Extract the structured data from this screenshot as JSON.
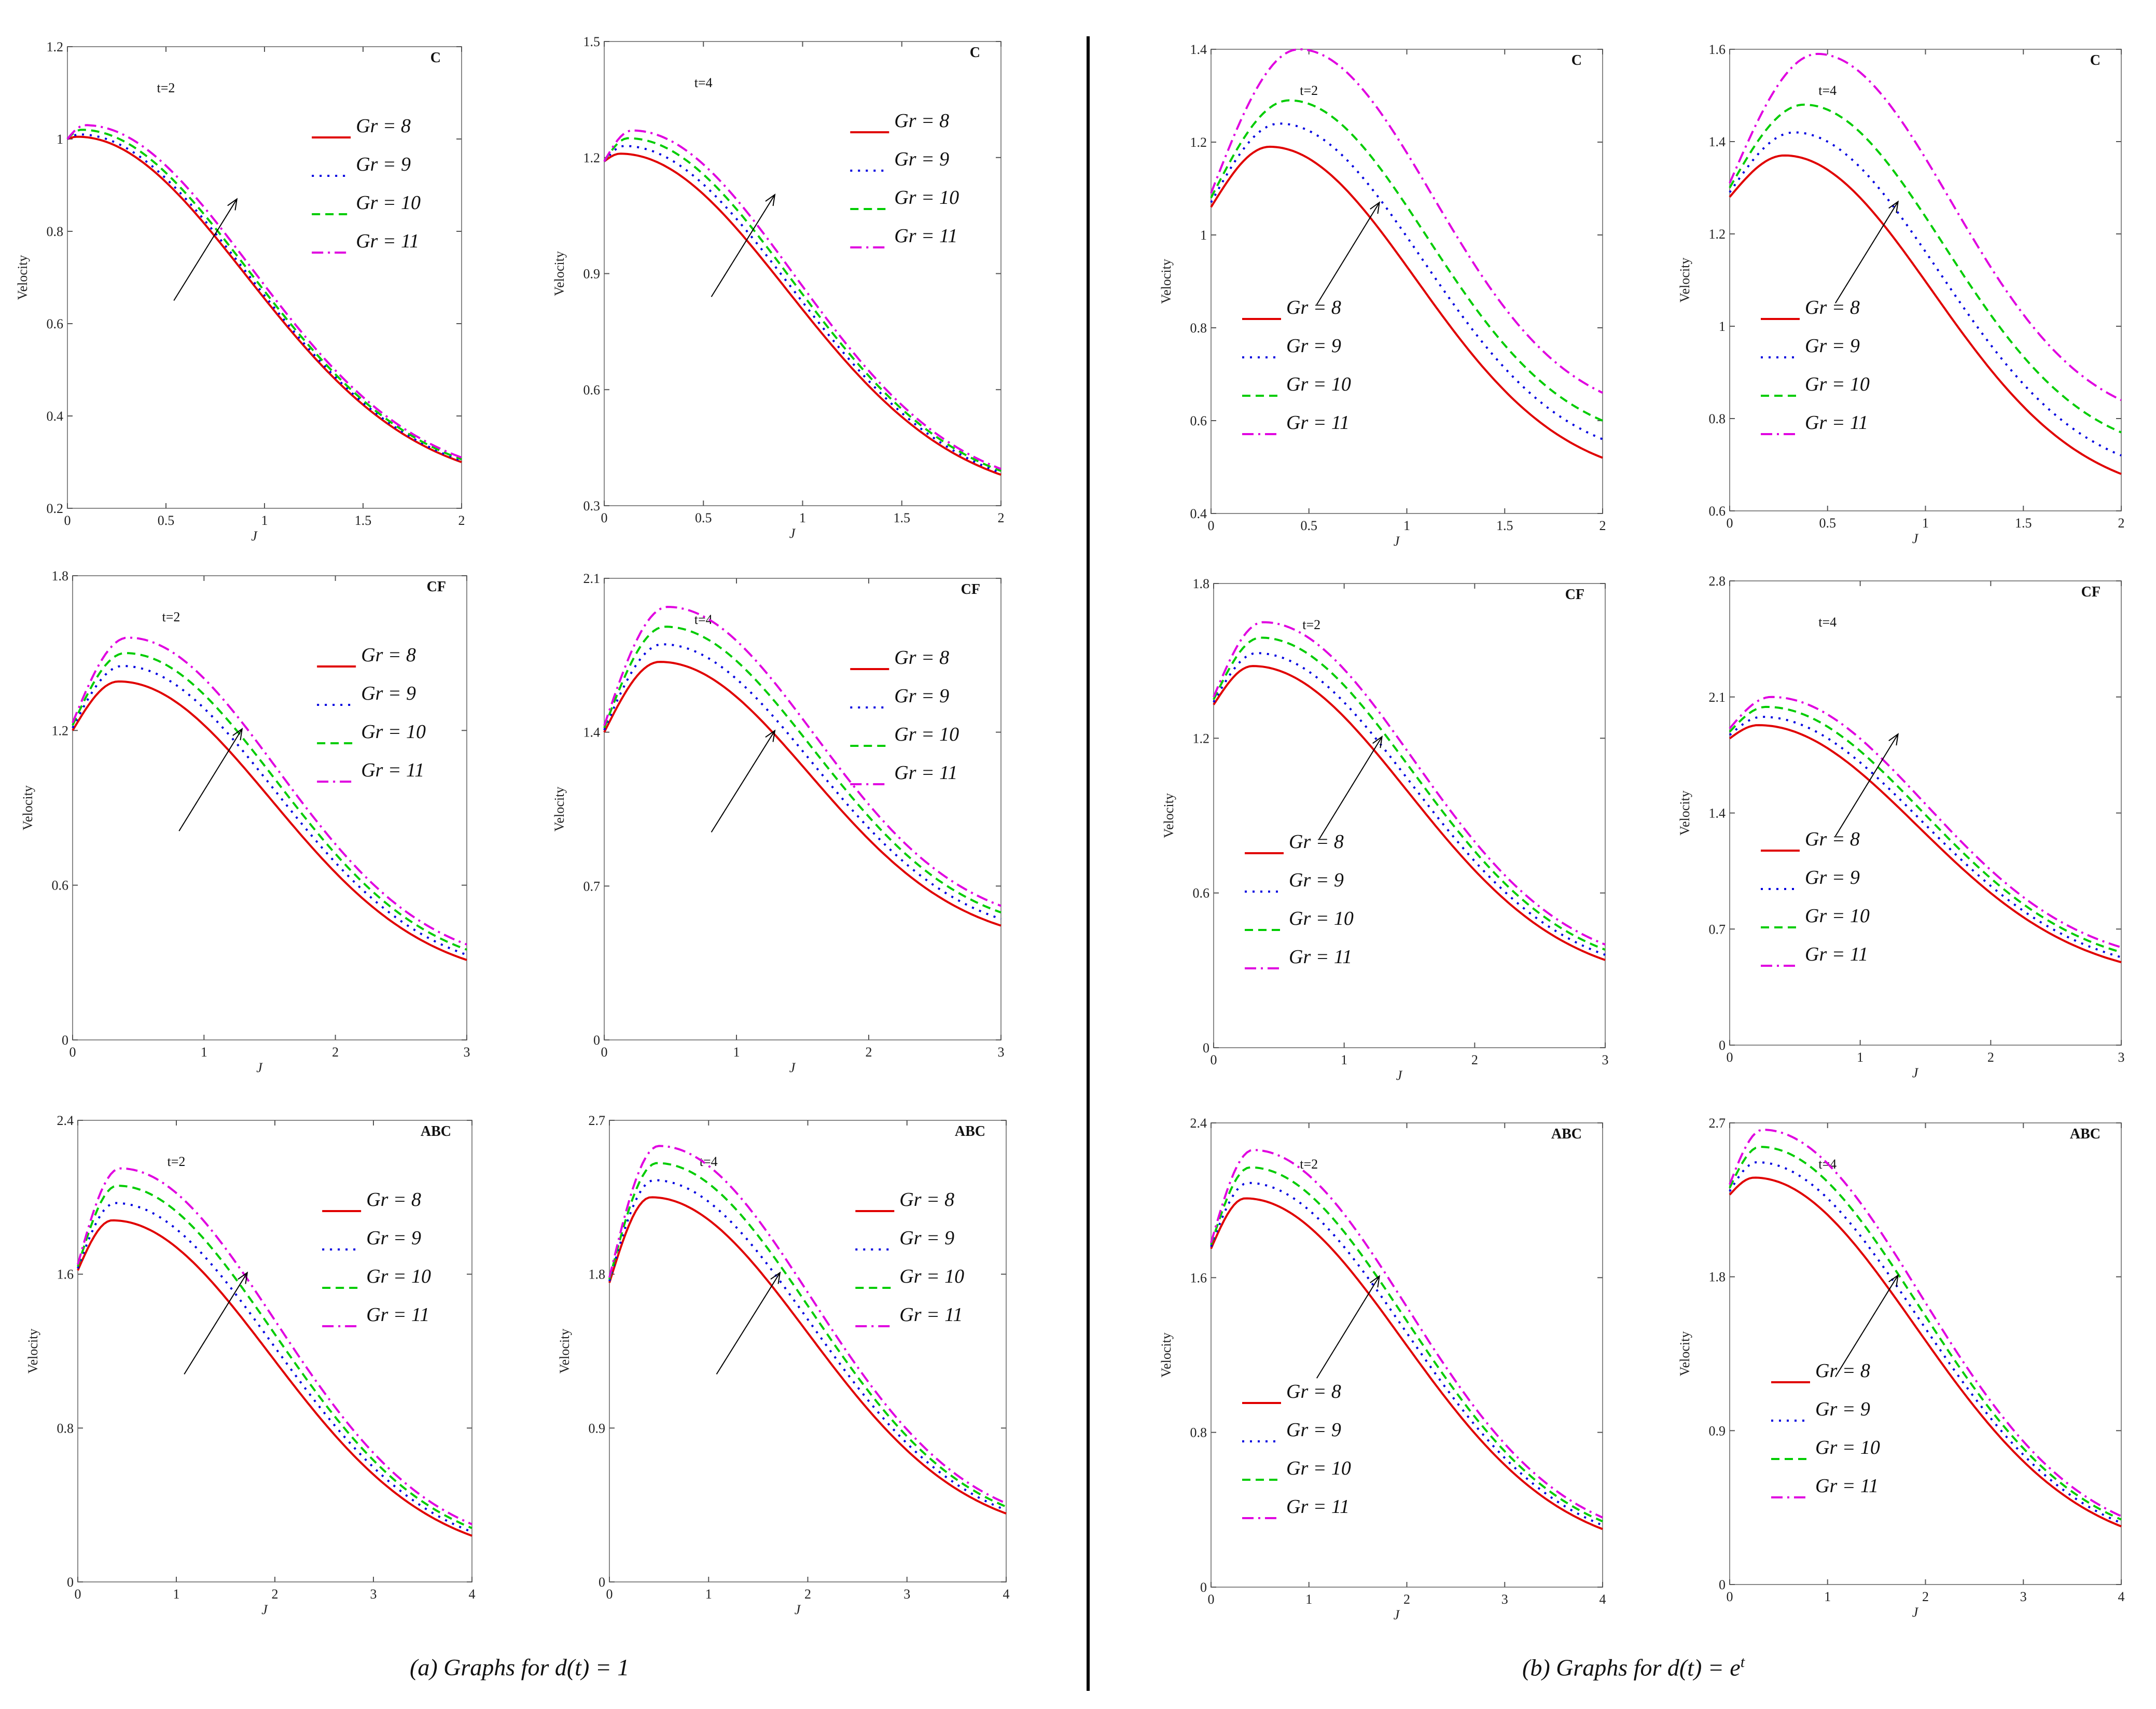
{
  "figure": {
    "caption_a": "(a)   Graphs   for   d(t) = 1",
    "caption_b_prefix": "(b)   Graphs   for   d(t) = e",
    "caption_b_sup": "t"
  },
  "colors": {
    "s8": "#e00000",
    "s9": "#0000e0",
    "s10": "#00cc00",
    "s11": "#e000e0"
  },
  "legend_prefix": "Gr",
  "chart_data": [
    {
      "id": "a-C-t2",
      "type": "line",
      "model": "C",
      "time_label": "t=2",
      "xlabel": "J",
      "ylabel": "Velocity",
      "xlim": [
        0,
        2
      ],
      "xticks": [
        0,
        0.5,
        1,
        1.5,
        2
      ],
      "ylim": [
        0.2,
        1.2
      ],
      "yticks": [
        0.2,
        0.4,
        0.6,
        0.8,
        1,
        1.2
      ],
      "series": [
        {
          "name": "Gr = 8",
          "y0": 1.0,
          "peak_x": 0.05,
          "peak_y": 1.005,
          "y_end": 0.3
        },
        {
          "name": "Gr = 9",
          "y0": 1.0,
          "peak_x": 0.06,
          "peak_y": 1.01,
          "y_end": 0.303
        },
        {
          "name": "Gr = 10",
          "y0": 1.0,
          "peak_x": 0.07,
          "peak_y": 1.02,
          "y_end": 0.306
        },
        {
          "name": "Gr = 11",
          "y0": 1.0,
          "peak_x": 0.09,
          "peak_y": 1.03,
          "y_end": 0.31
        }
      ]
    },
    {
      "id": "a-C-t4",
      "type": "line",
      "model": "C",
      "time_label": "t=4",
      "xlabel": "J",
      "ylabel": "Velocity",
      "xlim": [
        0,
        2
      ],
      "xticks": [
        0,
        0.5,
        1,
        1.5,
        2
      ],
      "ylim": [
        0.3,
        1.5
      ],
      "yticks": [
        0.3,
        0.6,
        0.9,
        1.2,
        1.5
      ],
      "series": [
        {
          "name": "Gr = 8",
          "y0": 1.19,
          "peak_x": 0.08,
          "peak_y": 1.21,
          "y_end": 0.38
        },
        {
          "name": "Gr = 9",
          "y0": 1.19,
          "peak_x": 0.1,
          "peak_y": 1.23,
          "y_end": 0.385
        },
        {
          "name": "Gr = 10",
          "y0": 1.19,
          "peak_x": 0.12,
          "peak_y": 1.25,
          "y_end": 0.39
        },
        {
          "name": "Gr = 11",
          "y0": 1.19,
          "peak_x": 0.14,
          "peak_y": 1.27,
          "y_end": 0.395
        }
      ]
    },
    {
      "id": "b-C-t2",
      "type": "line",
      "model": "C",
      "time_label": "t=2",
      "xlabel": "J",
      "ylabel": "Velocity",
      "xlim": [
        0,
        2
      ],
      "xticks": [
        0,
        0.5,
        1,
        1.5,
        2
      ],
      "ylim": [
        0.4,
        1.4
      ],
      "yticks": [
        0.4,
        0.6,
        0.8,
        1,
        1.2,
        1.4
      ],
      "series": [
        {
          "name": "Gr = 8",
          "y0": 1.06,
          "peak_x": 0.3,
          "peak_y": 1.19,
          "y_end": 0.52
        },
        {
          "name": "Gr = 9",
          "y0": 1.07,
          "peak_x": 0.35,
          "peak_y": 1.24,
          "y_end": 0.56
        },
        {
          "name": "Gr = 10",
          "y0": 1.08,
          "peak_x": 0.4,
          "peak_y": 1.29,
          "y_end": 0.6
        },
        {
          "name": "Gr = 11",
          "y0": 1.09,
          "peak_x": 0.45,
          "peak_y": 1.4,
          "y_end": 0.66
        }
      ]
    },
    {
      "id": "b-C-t4",
      "type": "line",
      "model": "C",
      "time_label": "t=4",
      "xlabel": "J",
      "ylabel": "Velocity",
      "xlim": [
        0,
        2
      ],
      "xticks": [
        0,
        0.5,
        1,
        1.5,
        2
      ],
      "ylim": [
        0.6,
        1.6
      ],
      "yticks": [
        0.6,
        0.8,
        1,
        1.2,
        1.4,
        1.6
      ],
      "series": [
        {
          "name": "Gr = 8",
          "y0": 1.28,
          "peak_x": 0.28,
          "peak_y": 1.37,
          "y_end": 0.68
        },
        {
          "name": "Gr = 9",
          "y0": 1.29,
          "peak_x": 0.33,
          "peak_y": 1.42,
          "y_end": 0.72
        },
        {
          "name": "Gr = 10",
          "y0": 1.3,
          "peak_x": 0.38,
          "peak_y": 1.48,
          "y_end": 0.77
        },
        {
          "name": "Gr = 11",
          "y0": 1.31,
          "peak_x": 0.45,
          "peak_y": 1.59,
          "y_end": 0.84
        }
      ]
    },
    {
      "id": "a-CF-t2",
      "type": "line",
      "model": "CF",
      "time_label": "t=2",
      "xlabel": "J",
      "ylabel": "Velocity",
      "xlim": [
        0,
        3
      ],
      "xticks": [
        0,
        1,
        2,
        3
      ],
      "ylim": [
        0,
        1.8
      ],
      "yticks": [
        0,
        0.6,
        1.2,
        1.8
      ],
      "series": [
        {
          "name": "Gr = 8",
          "y0": 1.2,
          "peak_x": 0.35,
          "peak_y": 1.39,
          "y_end": 0.31
        },
        {
          "name": "Gr = 9",
          "y0": 1.21,
          "peak_x": 0.38,
          "peak_y": 1.45,
          "y_end": 0.33
        },
        {
          "name": "Gr = 10",
          "y0": 1.22,
          "peak_x": 0.4,
          "peak_y": 1.5,
          "y_end": 0.35
        },
        {
          "name": "Gr = 11",
          "y0": 1.23,
          "peak_x": 0.42,
          "peak_y": 1.56,
          "y_end": 0.37
        }
      ]
    },
    {
      "id": "a-CF-t4",
      "type": "line",
      "model": "CF",
      "time_label": "t=4",
      "xlabel": "J",
      "ylabel": "Velocity",
      "xlim": [
        0,
        3
      ],
      "xticks": [
        0,
        1,
        2,
        3
      ],
      "ylim": [
        0,
        2.1
      ],
      "yticks": [
        0,
        0.7,
        1.4,
        2.1
      ],
      "series": [
        {
          "name": "Gr = 8",
          "y0": 1.4,
          "peak_x": 0.42,
          "peak_y": 1.72,
          "y_end": 0.52
        },
        {
          "name": "Gr = 9",
          "y0": 1.41,
          "peak_x": 0.44,
          "peak_y": 1.8,
          "y_end": 0.55
        },
        {
          "name": "Gr = 10",
          "y0": 1.42,
          "peak_x": 0.46,
          "peak_y": 1.88,
          "y_end": 0.58
        },
        {
          "name": "Gr = 11",
          "y0": 1.43,
          "peak_x": 0.48,
          "peak_y": 1.97,
          "y_end": 0.61
        }
      ]
    },
    {
      "id": "b-CF-t2",
      "type": "line",
      "model": "CF",
      "time_label": "t=2",
      "xlabel": "J",
      "ylabel": "Velocity",
      "xlim": [
        0,
        3
      ],
      "xticks": [
        0,
        1,
        2,
        3
      ],
      "ylim": [
        0,
        1.8
      ],
      "yticks": [
        0,
        0.6,
        1.2,
        1.8
      ],
      "series": [
        {
          "name": "Gr = 8",
          "y0": 1.33,
          "peak_x": 0.3,
          "peak_y": 1.48,
          "y_end": 0.34
        },
        {
          "name": "Gr = 9",
          "y0": 1.34,
          "peak_x": 0.33,
          "peak_y": 1.53,
          "y_end": 0.36
        },
        {
          "name": "Gr = 10",
          "y0": 1.35,
          "peak_x": 0.36,
          "peak_y": 1.59,
          "y_end": 0.38
        },
        {
          "name": "Gr = 11",
          "y0": 1.36,
          "peak_x": 0.38,
          "peak_y": 1.65,
          "y_end": 0.4
        }
      ]
    },
    {
      "id": "b-CF-t4",
      "type": "line",
      "model": "CF",
      "time_label": "t=4",
      "xlabel": "J",
      "ylabel": "Velocity",
      "xlim": [
        0,
        3
      ],
      "xticks": [
        0,
        1,
        2,
        3
      ],
      "ylim": [
        0,
        2.8
      ],
      "yticks": [
        0,
        0.7,
        1.4,
        2.1,
        2.8
      ],
      "series": [
        {
          "name": "Gr = 8",
          "y0": 1.85,
          "peak_x": 0.22,
          "peak_y": 1.93,
          "y_end": 0.5
        },
        {
          "name": "Gr = 9",
          "y0": 1.87,
          "peak_x": 0.25,
          "peak_y": 1.98,
          "y_end": 0.53
        },
        {
          "name": "Gr = 10",
          "y0": 1.89,
          "peak_x": 0.28,
          "peak_y": 2.04,
          "y_end": 0.56
        },
        {
          "name": "Gr = 11",
          "y0": 1.91,
          "peak_x": 0.32,
          "peak_y": 2.1,
          "y_end": 0.59
        }
      ]
    },
    {
      "id": "a-ABC-t2",
      "type": "line",
      "model": "ABC",
      "time_label": "t=2",
      "xlabel": "J",
      "ylabel": "Velocity",
      "xlim": [
        0,
        4
      ],
      "xticks": [
        0,
        1,
        2,
        3,
        4
      ],
      "ylim": [
        0,
        2.4
      ],
      "yticks": [
        0,
        0.8,
        1.6,
        2.4
      ],
      "series": [
        {
          "name": "Gr = 8",
          "y0": 1.62,
          "peak_x": 0.35,
          "peak_y": 1.88,
          "y_end": 0.24
        },
        {
          "name": "Gr = 9",
          "y0": 1.63,
          "peak_x": 0.38,
          "peak_y": 1.97,
          "y_end": 0.26
        },
        {
          "name": "Gr = 10",
          "y0": 1.64,
          "peak_x": 0.4,
          "peak_y": 2.06,
          "y_end": 0.28
        },
        {
          "name": "Gr = 11",
          "y0": 1.65,
          "peak_x": 0.43,
          "peak_y": 2.15,
          "y_end": 0.3
        }
      ]
    },
    {
      "id": "a-ABC-t4",
      "type": "line",
      "model": "ABC",
      "time_label": "t=4",
      "xlabel": "J",
      "ylabel": "Velocity",
      "xlim": [
        0,
        4
      ],
      "xticks": [
        0,
        1,
        2,
        3,
        4
      ],
      "ylim": [
        0,
        2.7
      ],
      "yticks": [
        0,
        0.9,
        1.8,
        2.7
      ],
      "series": [
        {
          "name": "Gr = 8",
          "y0": 1.75,
          "peak_x": 0.42,
          "peak_y": 2.25,
          "y_end": 0.4
        },
        {
          "name": "Gr = 9",
          "y0": 1.76,
          "peak_x": 0.45,
          "peak_y": 2.35,
          "y_end": 0.42
        },
        {
          "name": "Gr = 10",
          "y0": 1.77,
          "peak_x": 0.48,
          "peak_y": 2.45,
          "y_end": 0.44
        },
        {
          "name": "Gr = 11",
          "y0": 1.78,
          "peak_x": 0.5,
          "peak_y": 2.55,
          "y_end": 0.46
        }
      ]
    },
    {
      "id": "b-ABC-t2",
      "type": "line",
      "model": "ABC",
      "time_label": "t=2",
      "xlabel": "J",
      "ylabel": "Velocity",
      "xlim": [
        0,
        4
      ],
      "xticks": [
        0,
        1,
        2,
        3,
        4
      ],
      "ylim": [
        0,
        2.4
      ],
      "yticks": [
        0,
        0.8,
        1.6,
        2.4
      ],
      "series": [
        {
          "name": "Gr = 8",
          "y0": 1.75,
          "peak_x": 0.35,
          "peak_y": 2.01,
          "y_end": 0.3
        },
        {
          "name": "Gr = 9",
          "y0": 1.76,
          "peak_x": 0.38,
          "peak_y": 2.09,
          "y_end": 0.32
        },
        {
          "name": "Gr = 10",
          "y0": 1.77,
          "peak_x": 0.4,
          "peak_y": 2.17,
          "y_end": 0.34
        },
        {
          "name": "Gr = 11",
          "y0": 1.78,
          "peak_x": 0.43,
          "peak_y": 2.26,
          "y_end": 0.36
        }
      ]
    },
    {
      "id": "b-ABC-t4",
      "type": "line",
      "model": "ABC",
      "time_label": "t=4",
      "xlabel": "J",
      "ylabel": "Velocity",
      "xlim": [
        0,
        4
      ],
      "xticks": [
        0,
        1,
        2,
        3,
        4
      ],
      "ylim": [
        0,
        2.7
      ],
      "yticks": [
        0,
        0.9,
        1.8,
        2.7
      ],
      "series": [
        {
          "name": "Gr = 8",
          "y0": 2.28,
          "peak_x": 0.25,
          "peak_y": 2.38,
          "y_end": 0.34
        },
        {
          "name": "Gr = 9",
          "y0": 2.3,
          "peak_x": 0.28,
          "peak_y": 2.47,
          "y_end": 0.36
        },
        {
          "name": "Gr = 10",
          "y0": 2.32,
          "peak_x": 0.31,
          "peak_y": 2.56,
          "y_end": 0.38
        },
        {
          "name": "Gr = 11",
          "y0": 2.34,
          "peak_x": 0.34,
          "peak_y": 2.66,
          "y_end": 0.4
        }
      ]
    }
  ]
}
